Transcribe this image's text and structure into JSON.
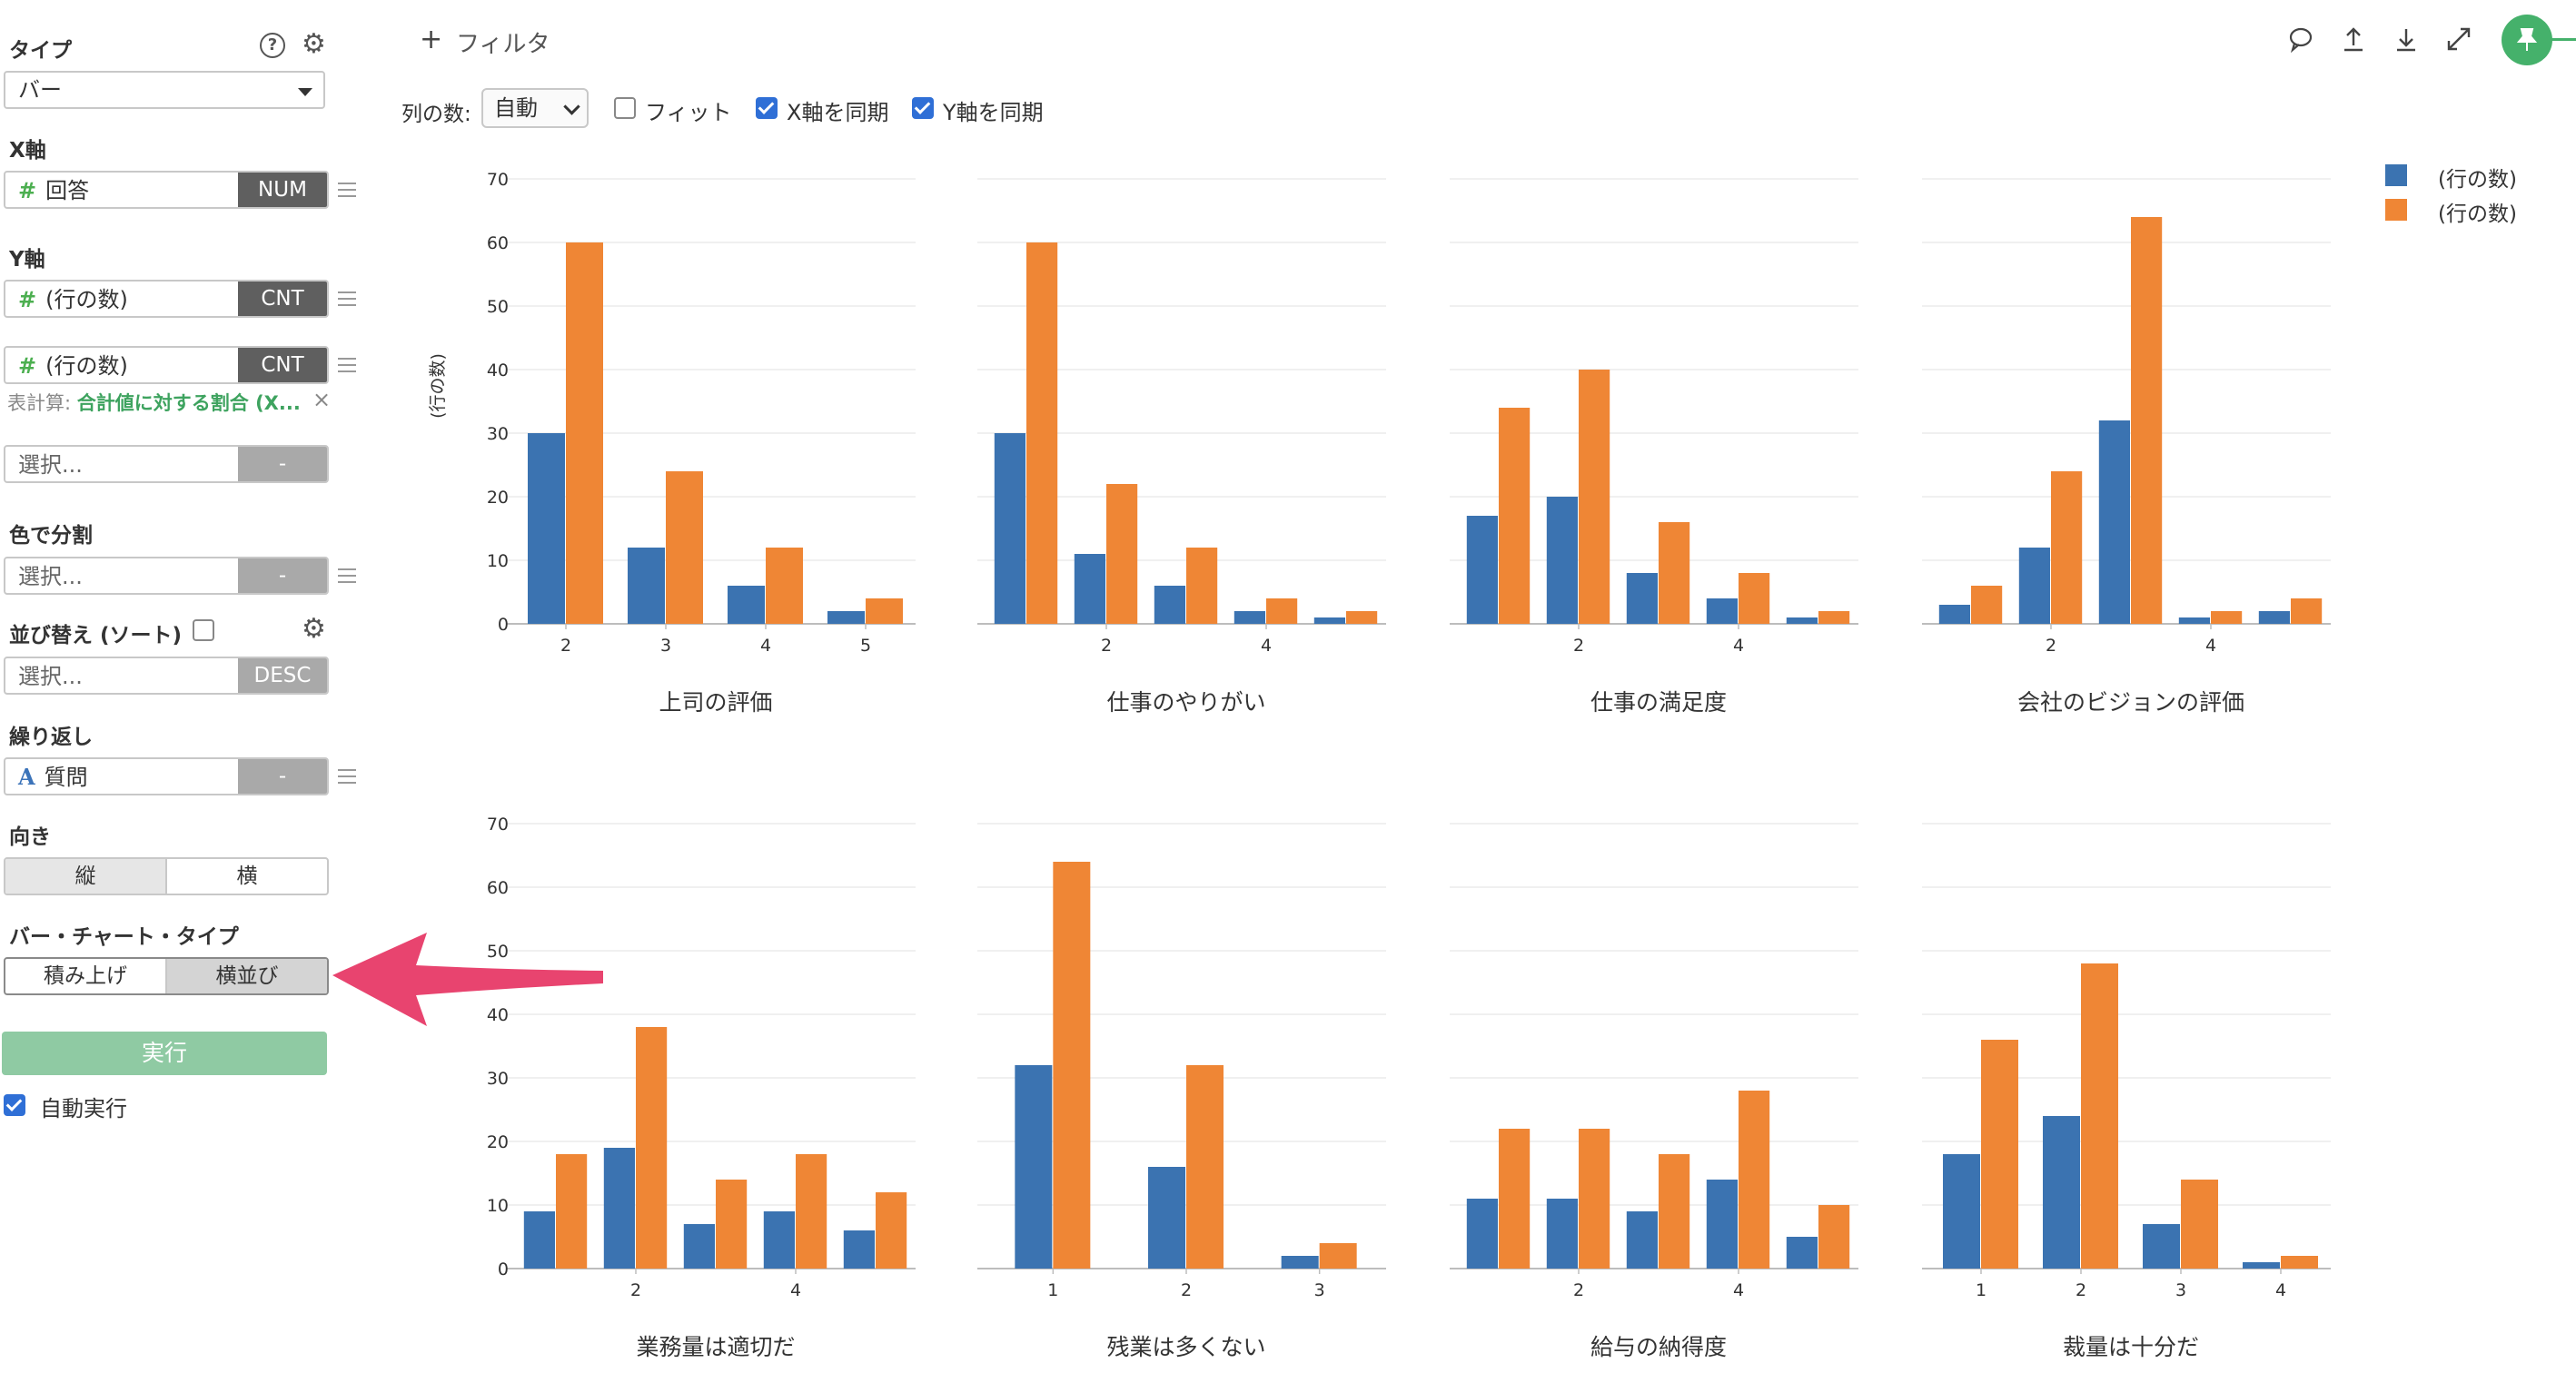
{
  "sidebar": {
    "type_label": "タイプ",
    "type_value": "バー",
    "x_label": "X軸",
    "x_field": {
      "icon": "#",
      "name": "回答",
      "tag": "NUM"
    },
    "y_label": "Y軸",
    "y_field1": {
      "icon": "#",
      "name": "(行の数)",
      "tag": "CNT"
    },
    "y_field2": {
      "icon": "#",
      "name": "(行の数)",
      "tag": "CNT"
    },
    "calc_prefix": "表計算: ",
    "calc_value": "合計値に対する割合 (X...",
    "calc_close": "×",
    "y_extra_placeholder": "選択...",
    "y_extra_tag": "-",
    "color_label": "色で分割",
    "color_placeholder": "選択...",
    "color_tag": "-",
    "sort_label": "並び替え (ソート)",
    "sort_placeholder": "選択...",
    "sort_tag": "DESC",
    "repeat_label": "繰り返し",
    "repeat_field": {
      "icon": "A",
      "name": "質問",
      "tag": "-"
    },
    "orientation_label": "向き",
    "orientation_options": [
      "縦",
      "横"
    ],
    "bar_type_label": "バー・チャート・タイプ",
    "bar_type_options": [
      "積み上げ",
      "横並び"
    ],
    "run_label": "実行",
    "auto_run_label": "自動実行",
    "help_icon_text": "?"
  },
  "toolbar": {
    "filter_label": "フィルタ",
    "filter_plus": "+",
    "columns_label": "列の数:",
    "columns_value": "自動",
    "fit_label": "フィット",
    "sync_x_label": "X軸を同期",
    "sync_y_label": "Y軸を同期"
  },
  "colors": {
    "series1": "#3b73b1",
    "series2": "#ef8635",
    "accent": "#45b16b",
    "arrow": "#e8446f"
  },
  "chart_data": {
    "type": "bar",
    "ylabel": "(行の数)",
    "ylim": [
      0,
      70
    ],
    "yticks": [
      0,
      10,
      20,
      30,
      40,
      50,
      60,
      70
    ],
    "legend": [
      "(行の数)",
      "(行の数)"
    ],
    "legend_position": "top-right",
    "grid": true,
    "panels": [
      {
        "title": "上司の評価",
        "x": [
          2,
          3,
          4,
          5
        ],
        "xticks": [
          "2",
          "3",
          "4",
          "5"
        ],
        "series": [
          {
            "name": "(行の数)",
            "values": [
              30,
              12,
              6,
              2
            ]
          },
          {
            "name": "(行の数)",
            "values": [
              60,
              24,
              12,
              4
            ]
          }
        ]
      },
      {
        "title": "仕事のやりがい",
        "x": [
          1,
          2,
          3,
          4,
          5
        ],
        "xticks": [
          "",
          "2",
          "",
          "4",
          ""
        ],
        "series": [
          {
            "name": "(行の数)",
            "values": [
              30,
              11,
              6,
              2,
              1
            ]
          },
          {
            "name": "(行の数)",
            "values": [
              60,
              22,
              12,
              4,
              2
            ]
          }
        ]
      },
      {
        "title": "仕事の満足度",
        "x": [
          1,
          2,
          3,
          4,
          5
        ],
        "xticks": [
          "",
          "2",
          "",
          "4",
          ""
        ],
        "series": [
          {
            "name": "(行の数)",
            "values": [
              17,
              20,
              8,
              4,
              1
            ]
          },
          {
            "name": "(行の数)",
            "values": [
              34,
              40,
              16,
              8,
              2
            ]
          }
        ]
      },
      {
        "title": "会社のビジョンの評価",
        "x": [
          1,
          2,
          3,
          4,
          5
        ],
        "xticks": [
          "",
          "2",
          "",
          "4",
          ""
        ],
        "series": [
          {
            "name": "(行の数)",
            "values": [
              3,
              12,
              32,
              1,
              2
            ]
          },
          {
            "name": "(行の数)",
            "values": [
              6,
              24,
              64,
              2,
              4
            ]
          }
        ]
      },
      {
        "title": "業務量は適切だ",
        "x": [
          1,
          2,
          3,
          4,
          5
        ],
        "xticks": [
          "",
          "2",
          "",
          "4",
          ""
        ],
        "series": [
          {
            "name": "(行の数)",
            "values": [
              9,
              19,
              7,
              9,
              6
            ]
          },
          {
            "name": "(行の数)",
            "values": [
              18,
              38,
              14,
              18,
              12
            ]
          }
        ]
      },
      {
        "title": "残業は多くない",
        "x": [
          1,
          2,
          3
        ],
        "xticks": [
          "1",
          "2",
          "3"
        ],
        "series": [
          {
            "name": "(行の数)",
            "values": [
              32,
              16,
              2
            ]
          },
          {
            "name": "(行の数)",
            "values": [
              64,
              32,
              4
            ]
          }
        ]
      },
      {
        "title": "給与の納得度",
        "x": [
          1,
          2,
          3,
          4,
          5
        ],
        "xticks": [
          "",
          "2",
          "",
          "4",
          ""
        ],
        "series": [
          {
            "name": "(行の数)",
            "values": [
              11,
              11,
              9,
              14,
              5
            ]
          },
          {
            "name": "(行の数)",
            "values": [
              22,
              22,
              18,
              28,
              10
            ]
          }
        ]
      },
      {
        "title": "裁量は十分だ",
        "x": [
          1,
          2,
          3,
          4
        ],
        "xticks": [
          "1",
          "2",
          "3",
          "4"
        ],
        "series": [
          {
            "name": "(行の数)",
            "values": [
              18,
              24,
              7,
              1
            ]
          },
          {
            "name": "(行の数)",
            "values": [
              36,
              48,
              14,
              2
            ]
          }
        ]
      }
    ]
  }
}
